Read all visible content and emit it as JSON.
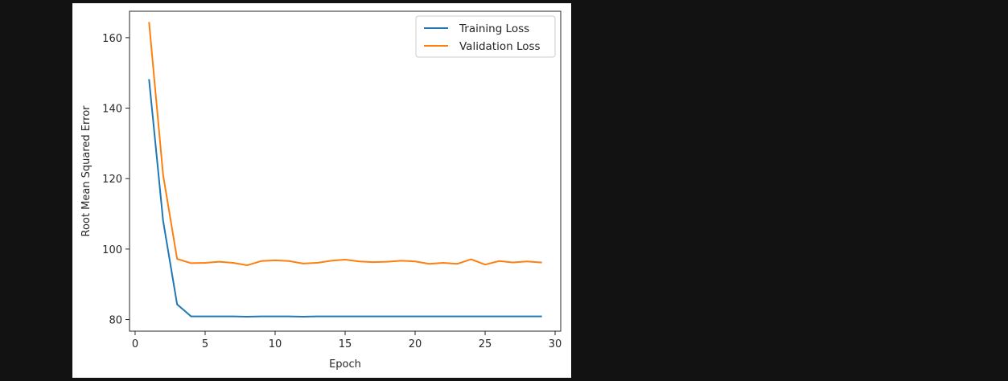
{
  "chart_data": {
    "type": "line",
    "xlabel": "Epoch",
    "ylabel": "Root Mean Squared Error",
    "xlim": [
      -0.4,
      30.4
    ],
    "ylim": [
      76.7,
      167.5
    ],
    "xticks": [
      0,
      5,
      10,
      15,
      20,
      25,
      30
    ],
    "yticks": [
      80,
      100,
      120,
      140,
      160
    ],
    "grid": false,
    "legend_position": "top-right",
    "x": [
      1,
      2,
      3,
      4,
      5,
      6,
      7,
      8,
      9,
      10,
      11,
      12,
      13,
      14,
      15,
      16,
      17,
      18,
      19,
      20,
      21,
      22,
      23,
      24,
      25,
      26,
      27,
      28,
      29
    ],
    "series": [
      {
        "name": "Training Loss",
        "color": "#1f77b4",
        "values": [
          148.0,
          108.0,
          84.3,
          80.9,
          80.9,
          80.9,
          80.9,
          80.8,
          80.9,
          80.9,
          80.9,
          80.8,
          80.9,
          80.9,
          80.9,
          80.9,
          80.9,
          80.9,
          80.9,
          80.9,
          80.9,
          80.9,
          80.9,
          80.9,
          80.9,
          80.9,
          80.9,
          80.9,
          80.9
        ]
      },
      {
        "name": "Validation Loss",
        "color": "#ff7f0e",
        "values": [
          164.2,
          121.0,
          97.2,
          96.0,
          96.1,
          96.4,
          96.1,
          95.4,
          96.6,
          96.8,
          96.6,
          95.9,
          96.1,
          96.7,
          97.0,
          96.5,
          96.3,
          96.4,
          96.7,
          96.5,
          95.8,
          96.1,
          95.8,
          97.1,
          95.6,
          96.6,
          96.2,
          96.5,
          96.2
        ]
      }
    ]
  }
}
